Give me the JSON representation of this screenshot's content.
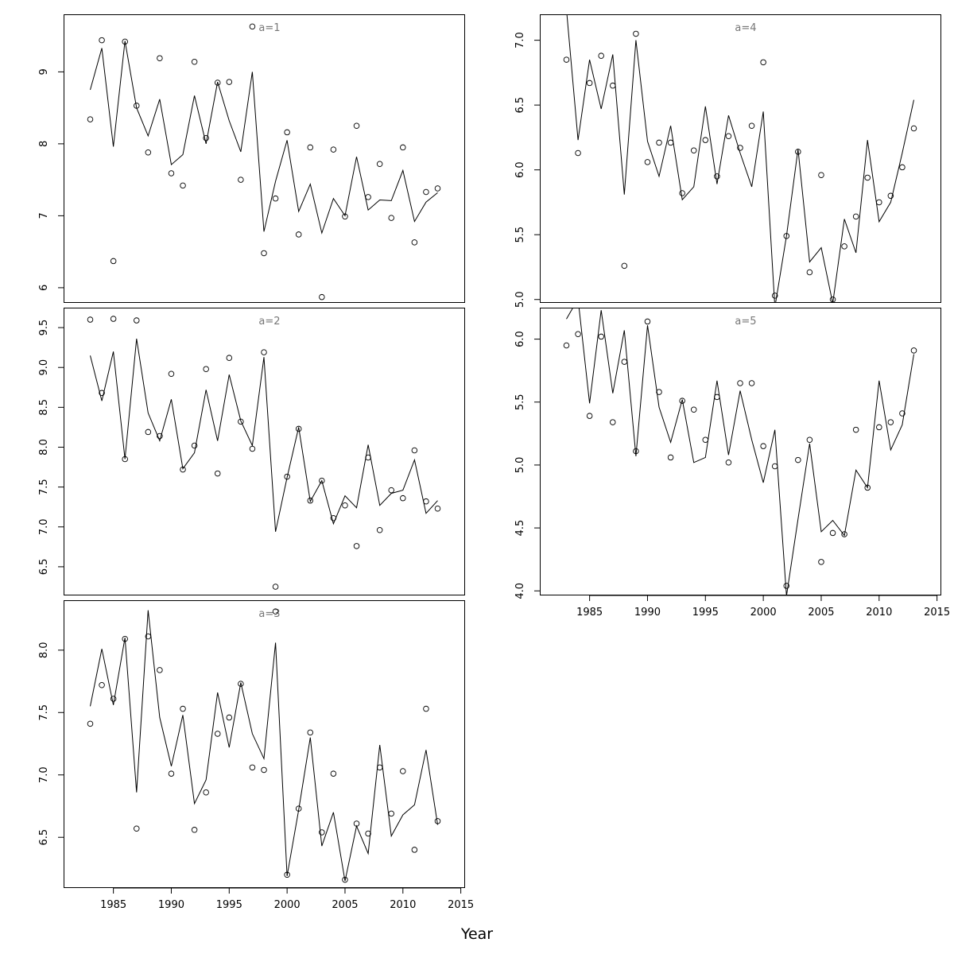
{
  "chart_data": {
    "type": "line",
    "xlabel": "Year",
    "x_ticks": [
      1985,
      1990,
      1995,
      2000,
      2005,
      2010,
      2015
    ],
    "x": [
      1983,
      1984,
      1985,
      1986,
      1987,
      1988,
      1989,
      1990,
      1991,
      1992,
      1993,
      1994,
      1995,
      1996,
      1997,
      1998,
      1999,
      2000,
      2001,
      2002,
      2003,
      2004,
      2005,
      2006,
      2007,
      2008,
      2009,
      2010,
      2011,
      2012,
      2013
    ],
    "series_style": {
      "observed": "open-circle points",
      "fitted": "solid black line"
    },
    "panels": [
      {
        "title": "a=1",
        "ylim": [
          5.8,
          9.8
        ],
        "y_ticks": [
          6,
          7,
          8,
          9
        ],
        "observed": [
          8.34,
          9.44,
          6.37,
          9.42,
          8.53,
          7.88,
          9.19,
          7.59,
          7.42,
          9.14,
          8.08,
          8.85,
          8.86,
          7.5,
          9.63,
          6.48,
          7.24,
          8.16,
          6.74,
          7.95,
          5.87,
          7.92,
          6.99,
          8.25,
          7.26,
          7.72,
          6.97,
          7.95,
          6.63,
          7.33,
          7.38
        ],
        "fitted": [
          8.75,
          9.33,
          7.96,
          9.43,
          8.5,
          8.11,
          8.62,
          7.71,
          7.85,
          8.67,
          8.0,
          8.86,
          8.32,
          7.89,
          9.0,
          6.78,
          7.48,
          8.05,
          7.06,
          7.44,
          6.76,
          7.24,
          7.0,
          7.82,
          7.08,
          7.22,
          7.21,
          7.63,
          6.92,
          7.19,
          7.32
        ]
      },
      {
        "title": "a=2",
        "ylim": [
          6.15,
          9.75
        ],
        "y_ticks": [
          6.5,
          7.0,
          7.5,
          8.0,
          8.5,
          9.0,
          9.5
        ],
        "observed": [
          9.6,
          8.68,
          9.61,
          7.85,
          9.59,
          8.19,
          8.14,
          8.92,
          7.72,
          8.02,
          8.98,
          7.67,
          9.12,
          8.32,
          7.98,
          9.19,
          6.25,
          7.63,
          8.23,
          7.33,
          7.58,
          7.11,
          7.27,
          6.76,
          7.87,
          6.96,
          7.46,
          7.36,
          7.96,
          7.32,
          7.23
        ],
        "fitted": [
          9.15,
          8.58,
          9.2,
          7.85,
          9.36,
          8.43,
          8.08,
          8.6,
          7.73,
          7.93,
          8.72,
          8.08,
          8.91,
          8.33,
          8.02,
          9.13,
          6.94,
          7.62,
          8.25,
          7.32,
          7.58,
          7.04,
          7.39,
          7.24,
          8.03,
          7.27,
          7.42,
          7.46,
          7.84,
          7.17,
          7.33
        ]
      },
      {
        "title": "a=3",
        "ylim": [
          6.1,
          8.4
        ],
        "y_ticks": [
          6.5,
          7.0,
          7.5,
          8.0
        ],
        "observed": [
          7.41,
          7.72,
          7.61,
          8.09,
          6.57,
          8.11,
          7.84,
          7.01,
          7.53,
          6.56,
          6.86,
          7.33,
          7.46,
          7.73,
          7.06,
          7.04,
          8.31,
          6.2,
          6.73,
          7.34,
          6.54,
          7.01,
          6.16,
          6.61,
          6.53,
          7.06,
          6.69,
          7.03,
          6.4,
          7.53,
          6.63
        ],
        "fitted": [
          7.55,
          8.01,
          7.56,
          8.1,
          6.86,
          8.32,
          7.46,
          7.07,
          7.48,
          6.77,
          6.96,
          7.66,
          7.22,
          7.74,
          7.33,
          7.13,
          8.06,
          6.19,
          6.72,
          7.3,
          6.43,
          6.7,
          6.15,
          6.59,
          6.37,
          7.24,
          6.51,
          6.68,
          6.76,
          7.2,
          6.6
        ]
      },
      {
        "title": "a=4",
        "ylim": [
          4.98,
          7.2
        ],
        "y_ticks": [
          5.0,
          5.5,
          6.0,
          6.5,
          7.0
        ],
        "observed": [
          6.85,
          6.13,
          6.67,
          6.88,
          6.65,
          5.26,
          7.05,
          6.06,
          6.21,
          6.21,
          5.82,
          6.15,
          6.23,
          5.95,
          6.26,
          6.17,
          6.34,
          6.83,
          5.03,
          5.49,
          6.14,
          5.21,
          5.96,
          5.0,
          5.41,
          5.64,
          5.94,
          5.75,
          5.8,
          6.02,
          6.32
        ],
        "fitted": [
          7.24,
          6.23,
          6.85,
          6.47,
          6.89,
          5.81,
          7.0,
          6.22,
          5.95,
          6.34,
          5.77,
          5.87,
          6.49,
          5.89,
          6.42,
          6.13,
          5.87,
          6.45,
          4.94,
          5.49,
          6.16,
          5.29,
          5.4,
          4.97,
          5.62,
          5.36,
          6.23,
          5.6,
          5.75,
          6.13,
          6.54
        ]
      },
      {
        "title": "a=5",
        "ylim": [
          3.97,
          6.25
        ],
        "y_ticks": [
          4.0,
          4.5,
          5.0,
          5.5,
          6.0
        ],
        "observed": [
          5.95,
          6.04,
          5.39,
          6.02,
          5.34,
          5.82,
          5.11,
          6.14,
          5.58,
          5.06,
          5.51,
          5.44,
          5.2,
          5.54,
          5.02,
          5.65,
          5.65,
          5.15,
          4.99,
          4.04,
          5.04,
          5.2,
          4.23,
          4.46,
          4.45,
          5.28,
          4.82,
          5.3,
          5.34,
          5.41,
          5.91
        ],
        "fitted": [
          6.16,
          6.32,
          5.49,
          6.23,
          5.57,
          6.07,
          5.07,
          6.11,
          5.46,
          5.18,
          5.52,
          5.02,
          5.06,
          5.67,
          5.08,
          5.59,
          5.2,
          4.86,
          5.28,
          3.96,
          4.57,
          5.17,
          4.47,
          4.56,
          4.44,
          4.96,
          4.82,
          5.67,
          5.12,
          5.32,
          5.88
        ]
      }
    ]
  }
}
